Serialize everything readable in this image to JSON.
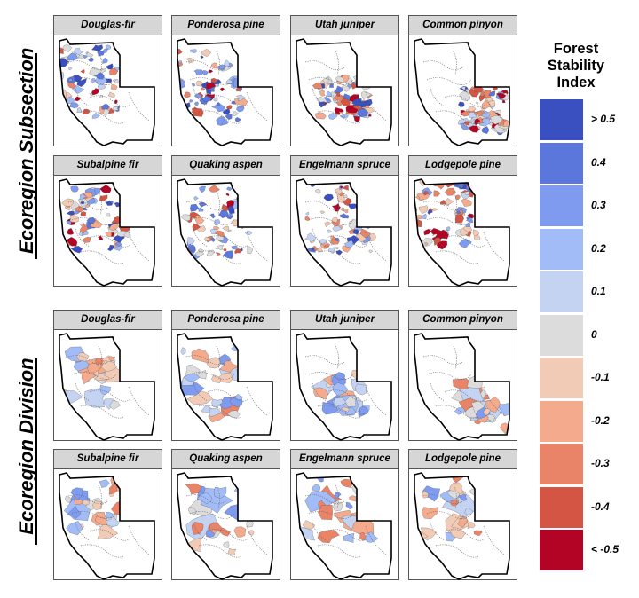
{
  "rows": [
    {
      "title": "Ecoregion Subsection",
      "panels": [
        {
          "species": "Douglas-fir",
          "scheme": "sub"
        },
        {
          "species": "Ponderosa pine",
          "scheme": "sub"
        },
        {
          "species": "Utah juniper",
          "scheme": "sub"
        },
        {
          "species": "Common pinyon",
          "scheme": "sub"
        },
        {
          "species": "Subalpine fir",
          "scheme": "sub"
        },
        {
          "species": "Quaking aspen",
          "scheme": "sub"
        },
        {
          "species": "Engelmann spruce",
          "scheme": "sub"
        },
        {
          "species": "Lodgepole pine",
          "scheme": "sub"
        }
      ]
    },
    {
      "title": "Ecoregion Division",
      "panels": [
        {
          "species": "Douglas-fir",
          "scheme": "div"
        },
        {
          "species": "Ponderosa pine",
          "scheme": "div"
        },
        {
          "species": "Utah juniper",
          "scheme": "div"
        },
        {
          "species": "Common pinyon",
          "scheme": "div"
        },
        {
          "species": "Subalpine fir",
          "scheme": "div"
        },
        {
          "species": "Quaking aspen",
          "scheme": "div"
        },
        {
          "species": "Engelmann spruce",
          "scheme": "div"
        },
        {
          "species": "Lodgepole pine",
          "scheme": "div"
        }
      ]
    }
  ],
  "legend": {
    "title_lines": [
      "Forest",
      "Stability",
      "Index"
    ],
    "items": [
      {
        "label": "> 0.5",
        "color": "#3a4fc0"
      },
      {
        "label": "0.4",
        "color": "#5b77dc"
      },
      {
        "label": "0.3",
        "color": "#7e9bf0"
      },
      {
        "label": "0.2",
        "color": "#a2bcf8"
      },
      {
        "label": "0.1",
        "color": "#c3d3f1"
      },
      {
        "label": "0",
        "color": "#dcdcdc"
      },
      {
        "label": "-0.1",
        "color": "#f2cbb7"
      },
      {
        "label": "-0.2",
        "color": "#f4aa8c"
      },
      {
        "label": "-0.3",
        "color": "#ea8468"
      },
      {
        "label": "-0.4",
        "color": "#d55544"
      },
      {
        "label": "< -0.5",
        "color": "#b40426"
      }
    ]
  }
}
